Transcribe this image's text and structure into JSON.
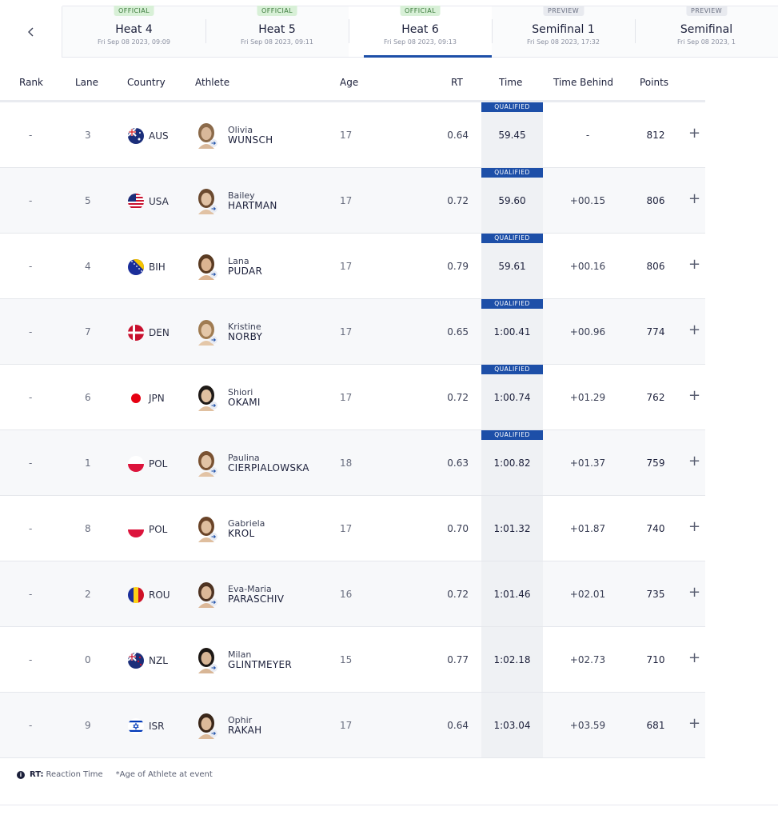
{
  "heats": [
    {
      "status": "OFFICIAL",
      "title": "Heat 4",
      "date": "Fri Sep 08 2023, 09:09",
      "kind": "official"
    },
    {
      "status": "OFFICIAL",
      "title": "Heat 5",
      "date": "Fri Sep 08 2023, 09:11",
      "kind": "official"
    },
    {
      "status": "OFFICIAL",
      "title": "Heat 6",
      "date": "Fri Sep 08 2023, 09:13",
      "kind": "official",
      "active": true
    },
    {
      "status": "PREVIEW",
      "title": "Semifinal 1",
      "date": "Fri Sep 08 2023, 17:32",
      "kind": "preview"
    },
    {
      "status": "PREVIEW",
      "title": "Semifinal",
      "date": "Fri Sep 08 2023, 1",
      "kind": "preview"
    }
  ],
  "columns": {
    "rank": "Rank",
    "lane": "Lane",
    "country": "Country",
    "athlete": "Athlete",
    "age": "Age",
    "rt": "RT",
    "time": "Time",
    "behind": "Time Behind",
    "points": "Points"
  },
  "qualified_label": "QUALIFIED",
  "rows": [
    {
      "rank": "-",
      "lane": "3",
      "country": "AUS",
      "flag": "aus",
      "first": "Olivia",
      "last": "WUNSCH",
      "age": "17",
      "rt": "0.64",
      "time": "59.45",
      "behind": "-",
      "points": "812",
      "qualified": true,
      "avatar_bg": "#d9b89a",
      "hair": "#8b6a4a"
    },
    {
      "rank": "-",
      "lane": "5",
      "country": "USA",
      "flag": "usa",
      "first": "Bailey",
      "last": "HARTMAN",
      "age": "17",
      "rt": "0.72",
      "time": "59.60",
      "behind": "+00.15",
      "points": "806",
      "qualified": true,
      "avatar_bg": "#e1c2a4",
      "hair": "#6b4a2f"
    },
    {
      "rank": "-",
      "lane": "4",
      "country": "BIH",
      "flag": "bih",
      "first": "Lana",
      "last": "PUDAR",
      "age": "17",
      "rt": "0.79",
      "time": "59.61",
      "behind": "+00.16",
      "points": "806",
      "qualified": true,
      "avatar_bg": "#dcb491",
      "hair": "#5a3b22"
    },
    {
      "rank": "-",
      "lane": "7",
      "country": "DEN",
      "flag": "den",
      "first": "Kristine",
      "last": "NORBY",
      "age": "17",
      "rt": "0.65",
      "time": "1:00.41",
      "behind": "+00.96",
      "points": "774",
      "qualified": true,
      "avatar_bg": "#e4c7a8",
      "hair": "#a07c52"
    },
    {
      "rank": "-",
      "lane": "6",
      "country": "JPN",
      "flag": "jpn",
      "first": "Shiori",
      "last": "OKAMI",
      "age": "17",
      "rt": "0.72",
      "time": "1:00.74",
      "behind": "+01.29",
      "points": "762",
      "qualified": true,
      "avatar_bg": "#e0c0a0",
      "hair": "#1f1a17"
    },
    {
      "rank": "-",
      "lane": "1",
      "country": "POL",
      "flag": "pol",
      "first": "Paulina",
      "last": "CIERPIALOWSKA",
      "age": "18",
      "rt": "0.63",
      "time": "1:00.82",
      "behind": "+01.37",
      "points": "759",
      "qualified": true,
      "avatar_bg": "#e2c3a5",
      "hair": "#7a5232"
    },
    {
      "rank": "-",
      "lane": "8",
      "country": "POL",
      "flag": "pol",
      "first": "Gabriela",
      "last": "KROL",
      "age": "17",
      "rt": "0.70",
      "time": "1:01.32",
      "behind": "+01.87",
      "points": "740",
      "qualified": false,
      "avatar_bg": "#dfbe9e",
      "hair": "#6a4428"
    },
    {
      "rank": "-",
      "lane": "2",
      "country": "ROU",
      "flag": "rou",
      "first": "Eva-Maria",
      "last": "PARASCHIV",
      "age": "16",
      "rt": "0.72",
      "time": "1:01.46",
      "behind": "+02.01",
      "points": "735",
      "qualified": false,
      "avatar_bg": "#dcb898",
      "hair": "#4e3322"
    },
    {
      "rank": "-",
      "lane": "0",
      "country": "NZL",
      "flag": "nzl",
      "first": "Milan",
      "last": "GLINTMEYER",
      "age": "15",
      "rt": "0.77",
      "time": "1:02.18",
      "behind": "+02.73",
      "points": "710",
      "qualified": false,
      "avatar_bg": "#d8b696",
      "hair": "#1c1714"
    },
    {
      "rank": "-",
      "lane": "9",
      "country": "ISR",
      "flag": "isr",
      "first": "Ophir",
      "last": "RAKAH",
      "age": "17",
      "rt": "0.64",
      "time": "1:03.04",
      "behind": "+03.59",
      "points": "681",
      "qualified": false,
      "avatar_bg": "#dcba9a",
      "hair": "#3a2719"
    }
  ],
  "footnote": {
    "rt_abbr": "RT:",
    "rt_text": "Reaction Time",
    "age_note": "*Age of Athlete at event"
  },
  "colors": {
    "accent": "#1d4fa8",
    "official": "#d8f0d7",
    "preview": "#e8eaef"
  }
}
